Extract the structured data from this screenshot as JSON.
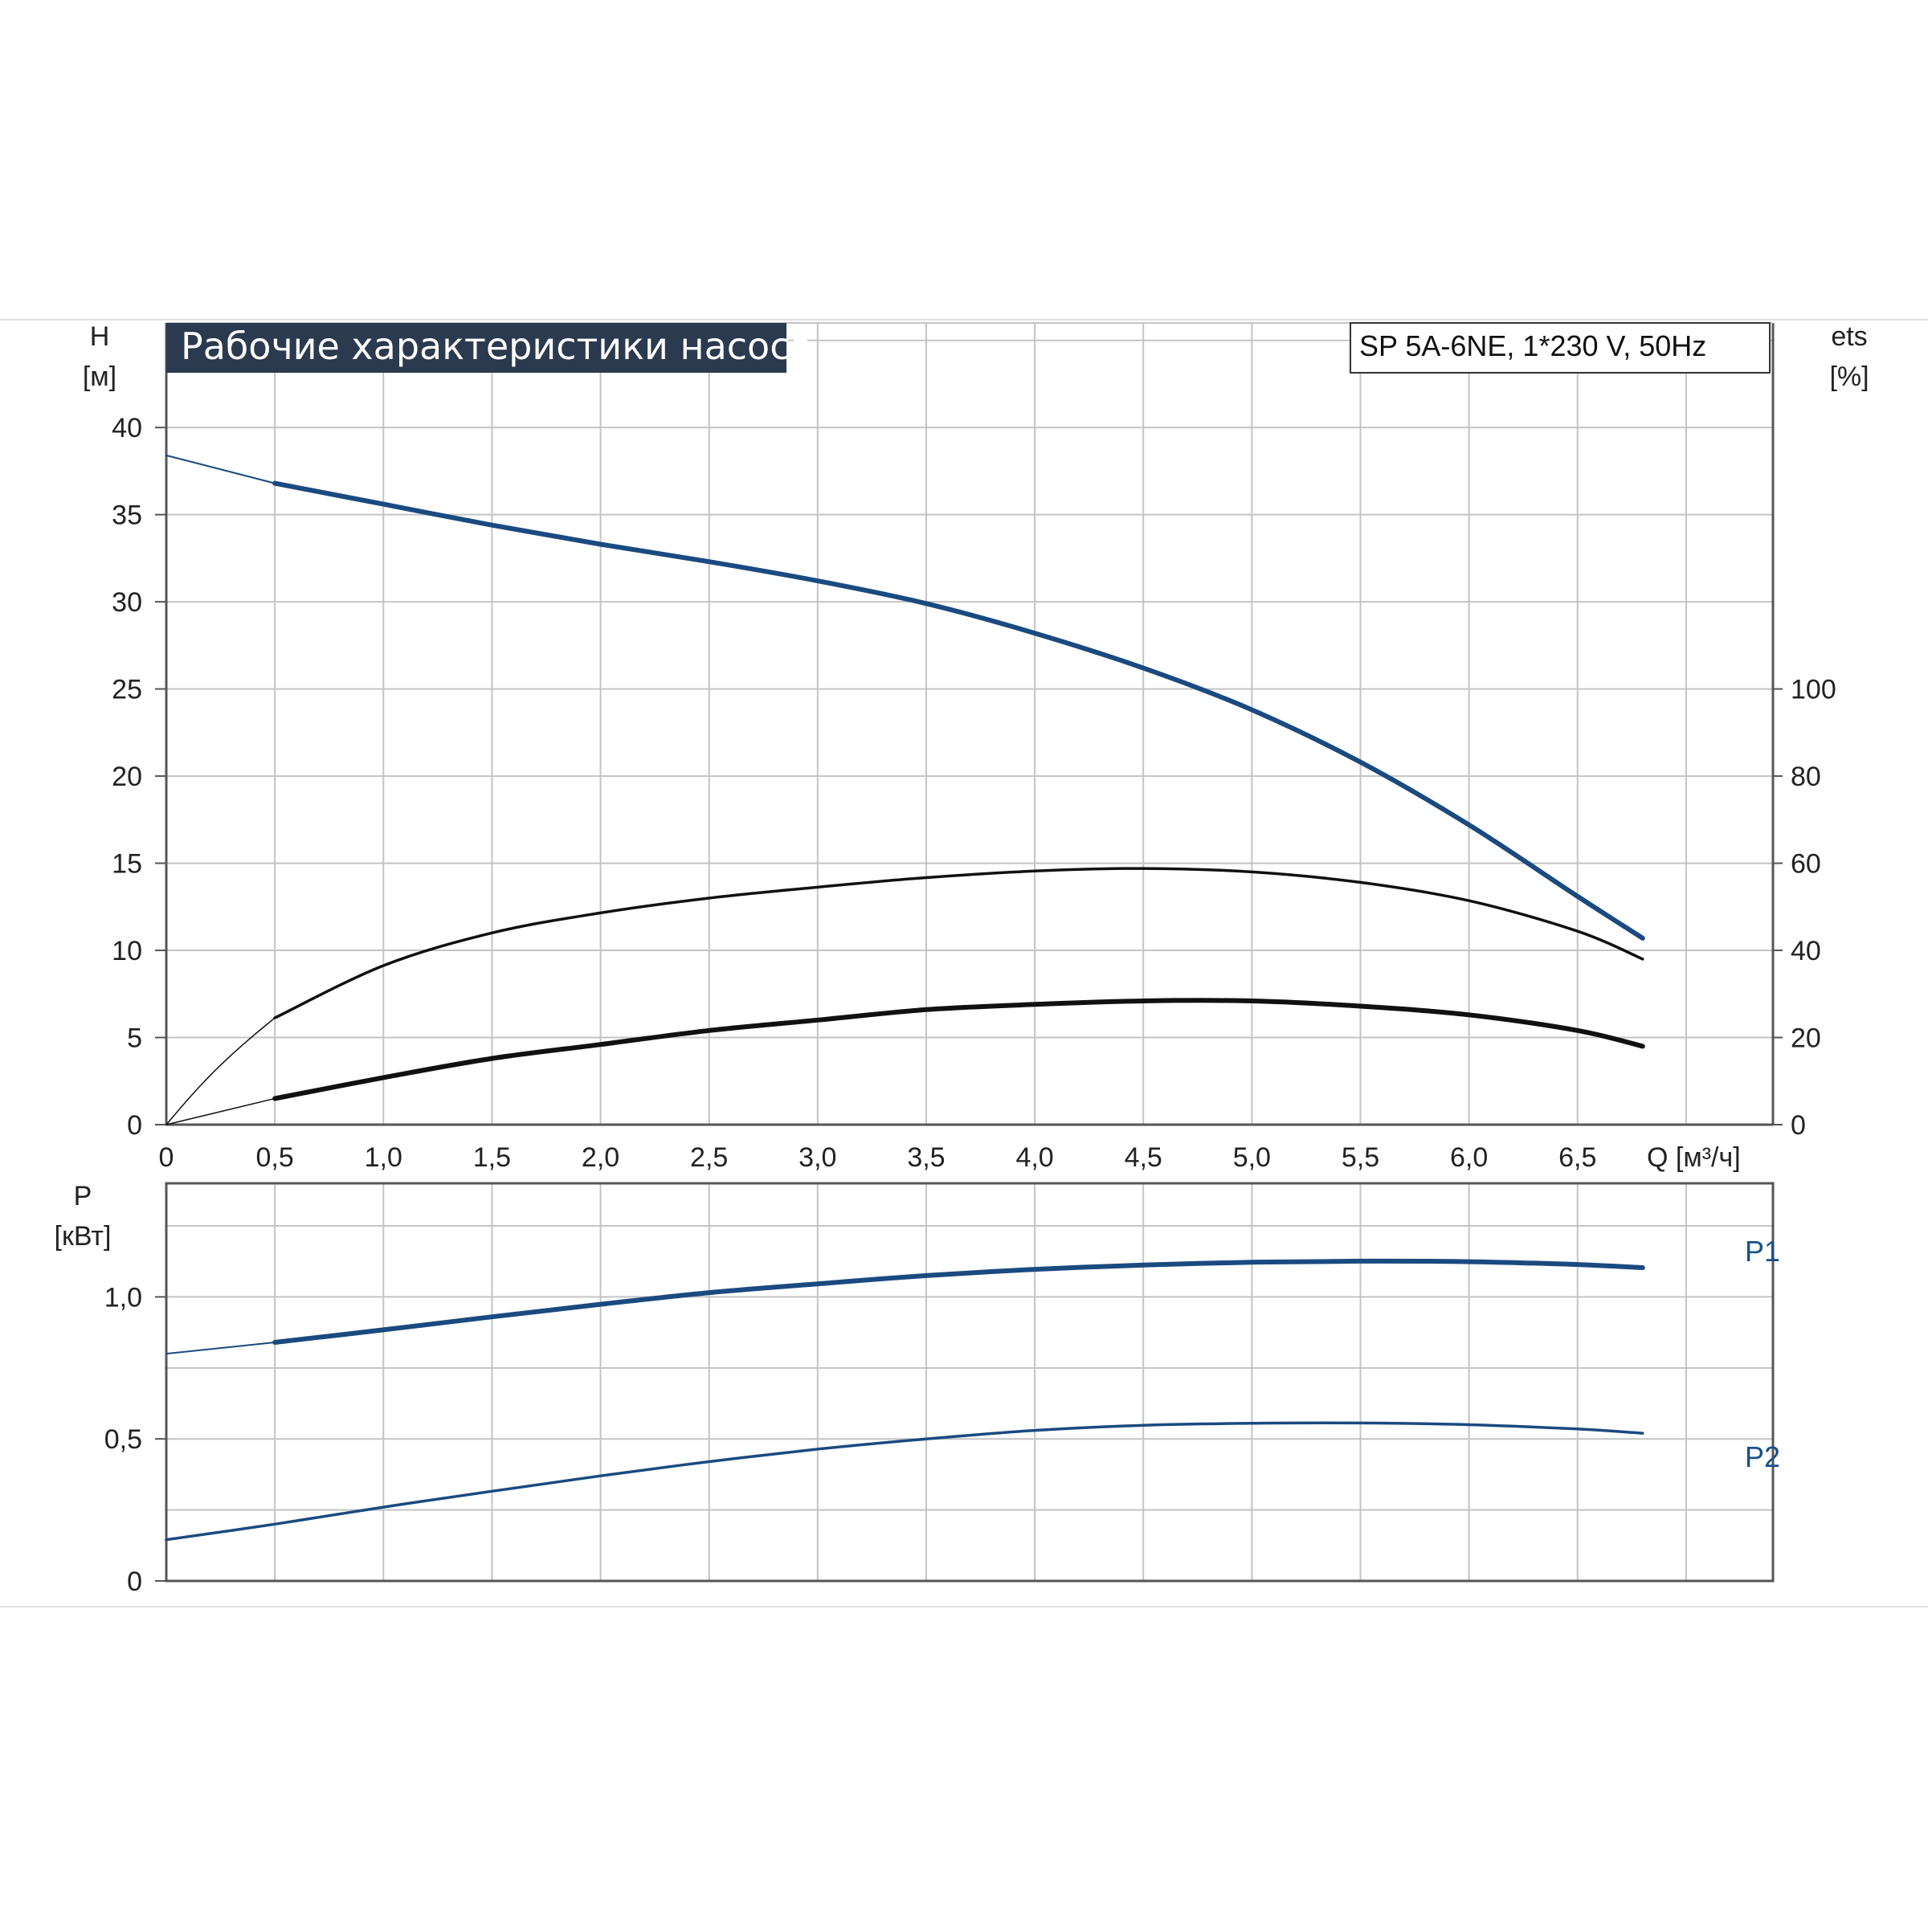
{
  "title": "Рабочие характеристики насоса",
  "model": "SP 5A-6NE, 1*230 V, 50Hz",
  "colors": {
    "title_bg": "#2b3a4e",
    "blue": "#1a4a80",
    "black": "#111111",
    "grid": "#c4c4c4",
    "axis": "#555555"
  },
  "chart_data": [
    {
      "type": "line",
      "name": "upper",
      "xlabel": "Q [м³/ч]",
      "ylabel": "H",
      "ylabel_unit": "[м]",
      "y2label": "ets",
      "y2label_unit": "[%]",
      "xlim": [
        0,
        7.4
      ],
      "ylim": [
        0,
        46
      ],
      "y2lim": [
        0,
        184
      ],
      "grid": true,
      "x_ticks": [
        "0",
        "0,5",
        "1,0",
        "1,5",
        "2,0",
        "2,5",
        "3,0",
        "3,5",
        "4,0",
        "4,5",
        "5,0",
        "5,5",
        "6,0",
        "6,5"
      ],
      "y_ticks": [
        "0",
        "5",
        "10",
        "15",
        "20",
        "25",
        "30",
        "35",
        "40"
      ],
      "y2_ticks": [
        "0",
        "20",
        "40",
        "60",
        "80",
        "100"
      ],
      "series": [
        {
          "axis": "left",
          "color": "blue",
          "width": 6,
          "x": [
            0.5,
            1.0,
            1.5,
            2.0,
            2.5,
            3.0,
            3.5,
            4.0,
            4.5,
            5.0,
            5.5,
            6.0,
            6.5,
            6.8
          ],
          "y": [
            36.8,
            35.6,
            34.4,
            33.3,
            32.3,
            31.2,
            29.9,
            28.2,
            26.2,
            23.8,
            20.8,
            17.2,
            13.1,
            10.7
          ]
        },
        {
          "axis": "left",
          "color": "blue",
          "width": 2,
          "x": [
            0,
            0.5
          ],
          "y": [
            38.4,
            36.8
          ]
        },
        {
          "axis": "right",
          "color": "black",
          "width": 3.5,
          "x": [
            0.5,
            1.0,
            1.5,
            2.0,
            2.5,
            3.0,
            3.5,
            4.0,
            4.5,
            5.0,
            5.5,
            6.0,
            6.5,
            6.8
          ],
          "y": [
            24.5,
            36.5,
            44.0,
            48.6,
            52.0,
            54.5,
            56.7,
            58.2,
            58.8,
            58.0,
            55.6,
            51.4,
            44.4,
            38.0
          ]
        },
        {
          "axis": "right",
          "color": "black",
          "width": 1.5,
          "x": [
            0,
            0.1,
            0.2,
            0.3,
            0.4,
            0.5
          ],
          "y": [
            0,
            5.8,
            11.2,
            16.0,
            20.4,
            24.5
          ]
        },
        {
          "axis": "left",
          "color": "black",
          "width": 6,
          "x": [
            0.5,
            1.0,
            1.5,
            2.0,
            2.5,
            3.0,
            3.5,
            4.0,
            4.5,
            5.0,
            5.5,
            6.0,
            6.5,
            6.8
          ],
          "y": [
            1.5,
            2.7,
            3.8,
            4.6,
            5.4,
            6.0,
            6.6,
            6.9,
            7.1,
            7.1,
            6.8,
            6.3,
            5.4,
            4.5
          ]
        },
        {
          "axis": "left",
          "color": "black",
          "width": 1.5,
          "x": [
            0,
            0.5
          ],
          "y": [
            0,
            1.5
          ]
        }
      ]
    },
    {
      "type": "line",
      "name": "lower",
      "xlabel": "",
      "ylabel": "P",
      "ylabel_unit": "[кВт]",
      "xlim": [
        0,
        7.4
      ],
      "ylim": [
        0,
        1.4
      ],
      "grid": true,
      "y_ticks": [
        "0",
        "0,5",
        "1,0"
      ],
      "series": [
        {
          "name": "P1",
          "color": "blue",
          "width": 6,
          "x": [
            0.5,
            1.0,
            1.5,
            2.0,
            2.5,
            3.0,
            3.5,
            4.0,
            4.5,
            5.0,
            5.5,
            6.0,
            6.5,
            6.8
          ],
          "y": [
            0.84,
            0.884,
            0.93,
            0.974,
            1.015,
            1.046,
            1.075,
            1.097,
            1.112,
            1.122,
            1.126,
            1.124,
            1.114,
            1.103
          ]
        },
        {
          "name": "",
          "color": "blue",
          "width": 2,
          "x": [
            0,
            0.5
          ],
          "y": [
            0.8,
            0.84
          ]
        },
        {
          "name": "P2",
          "color": "blue",
          "width": 3.5,
          "x": [
            0,
            0.5,
            1.0,
            1.5,
            2.0,
            2.5,
            3.0,
            3.5,
            4.0,
            4.5,
            5.0,
            5.5,
            6.0,
            6.5,
            6.8
          ],
          "y": [
            0.145,
            0.2,
            0.26,
            0.316,
            0.37,
            0.42,
            0.464,
            0.5,
            0.53,
            0.548,
            0.555,
            0.556,
            0.55,
            0.535,
            0.52
          ]
        }
      ]
    }
  ]
}
